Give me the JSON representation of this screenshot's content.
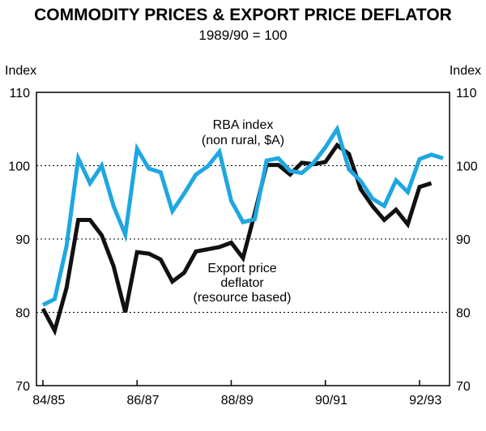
{
  "chart_data": {
    "type": "line",
    "title": "COMMODITY PRICES & EXPORT PRICE DEFLATOR",
    "subtitle": "1989/90 = 100",
    "ylabel_left": "Index",
    "ylabel_right": "Index",
    "ylim": [
      70,
      110
    ],
    "yticks": [
      70,
      80,
      90,
      100,
      110
    ],
    "grid": "dotted-horizontal",
    "x_range": [
      0,
      34
    ],
    "x_tick_labels": [
      {
        "label": "84/85",
        "x": 0.5
      },
      {
        "label": "86/87",
        "x": 8.5
      },
      {
        "label": "88/89",
        "x": 16.5
      },
      {
        "label": "90/91",
        "x": 24.5
      },
      {
        "label": "92/93",
        "x": 32.5
      }
    ],
    "series": [
      {
        "name": "RBA index (non rural, $A)",
        "color": "#1ea7e1",
        "label_lines": [
          "RBA index",
          "(non rural, $A)"
        ],
        "values": [
          81,
          81.8,
          89,
          101,
          97.6,
          100,
          94.5,
          90.6,
          102.3,
          99.6,
          99.1,
          93.8,
          96.2,
          98.8,
          99.9,
          101.9,
          95.2,
          92.3,
          92.7,
          100.7,
          101,
          99.3,
          99,
          100.4,
          102.5,
          105,
          99.5,
          97.9,
          95.5,
          94.5,
          98,
          96.4,
          100.9,
          101.5,
          101
        ]
      },
      {
        "name": "Export price deflator (resource based)",
        "color": "#111111",
        "label_lines": [
          "Export price",
          "deflator",
          "(resource based)"
        ],
        "values": [
          80.5,
          77.5,
          83.3,
          92.6,
          92.6,
          90.5,
          86.3,
          80,
          88.2,
          88,
          87.2,
          84.2,
          85.4,
          88.3,
          88.6,
          88.9,
          89.5,
          87.4,
          93.5,
          100.1,
          100.1,
          98.8,
          100.4,
          100.2,
          100.5,
          102.8,
          101.6,
          96.8,
          94.5,
          92.6,
          94,
          92,
          97.1,
          97.6,
          null
        ]
      }
    ]
  }
}
